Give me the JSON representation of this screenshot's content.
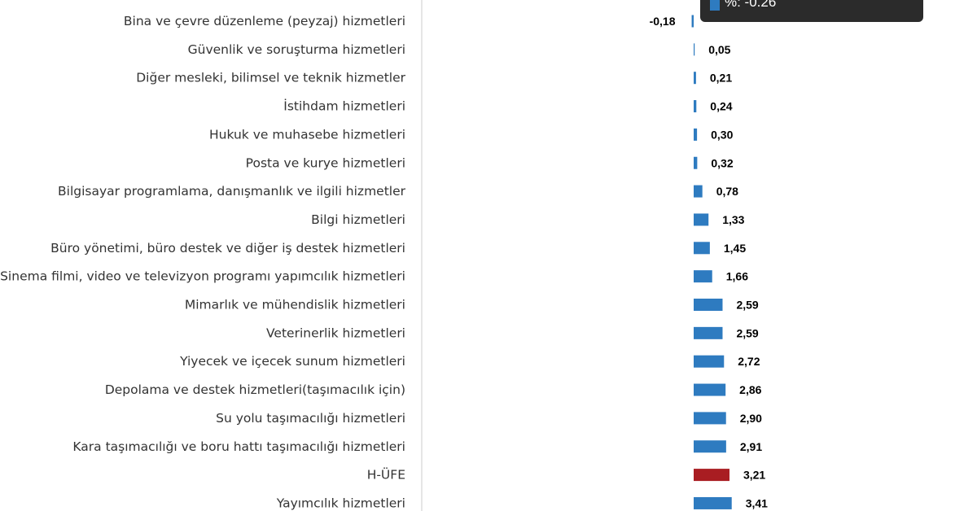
{
  "chart_data": {
    "type": "bar",
    "orientation": "horizontal",
    "categories": [
      "Bina ve çevre düzenleme (peyzaj) hizmetleri",
      "Güvenlik ve soruşturma hizmetleri",
      "Diğer mesleki, bilimsel ve teknik hizmetler",
      "İstihdam hizmetleri",
      "Hukuk ve muhasebe hizmetleri",
      "Posta ve kurye hizmetleri",
      "Bilgisayar programlama, danışmanlık ve ilgili hizmetler",
      "Bilgi hizmetleri",
      "Büro yönetimi, büro destek ve diğer iş destek hizmetleri",
      "Sinema filmi, video ve televizyon programı yapımcılık hizmetleri",
      "Mimarlık ve mühendislik hizmetleri",
      "Veterinerlik hizmetleri",
      "Yiyecek ve içecek sunum hizmetleri",
      "Depolama ve destek hizmetleri(taşımacılık için)",
      "Su yolu taşımacılığı hizmetleri",
      "Kara taşımacılığı ve boru hattı taşımacılığı hizmetleri",
      "H-ÜFE",
      "Yayımcılık hizmetleri"
    ],
    "values": [
      -0.18,
      0.05,
      0.21,
      0.24,
      0.3,
      0.32,
      0.78,
      1.33,
      1.45,
      1.66,
      2.59,
      2.59,
      2.72,
      2.86,
      2.9,
      2.91,
      3.21,
      3.41
    ],
    "value_labels": [
      "-0,18",
      "0,05",
      "0,21",
      "0,24",
      "0,30",
      "0,32",
      "0,78",
      "1,33",
      "1,45",
      "1,66",
      "2,59",
      "2,59",
      "2,72",
      "2,86",
      "2,90",
      "2,91",
      "3,21",
      "3,41"
    ],
    "highlight_category": "H-ÜFE",
    "colors": {
      "bar": "#2e7bc0",
      "highlight": "#a91d22",
      "axis": "#cccccc"
    },
    "title": "",
    "xlabel": "",
    "ylabel": "",
    "grid": false,
    "legend": "none"
  },
  "tooltip": {
    "text": "%: -0.26",
    "swatch_color": "#2e7bc0"
  }
}
